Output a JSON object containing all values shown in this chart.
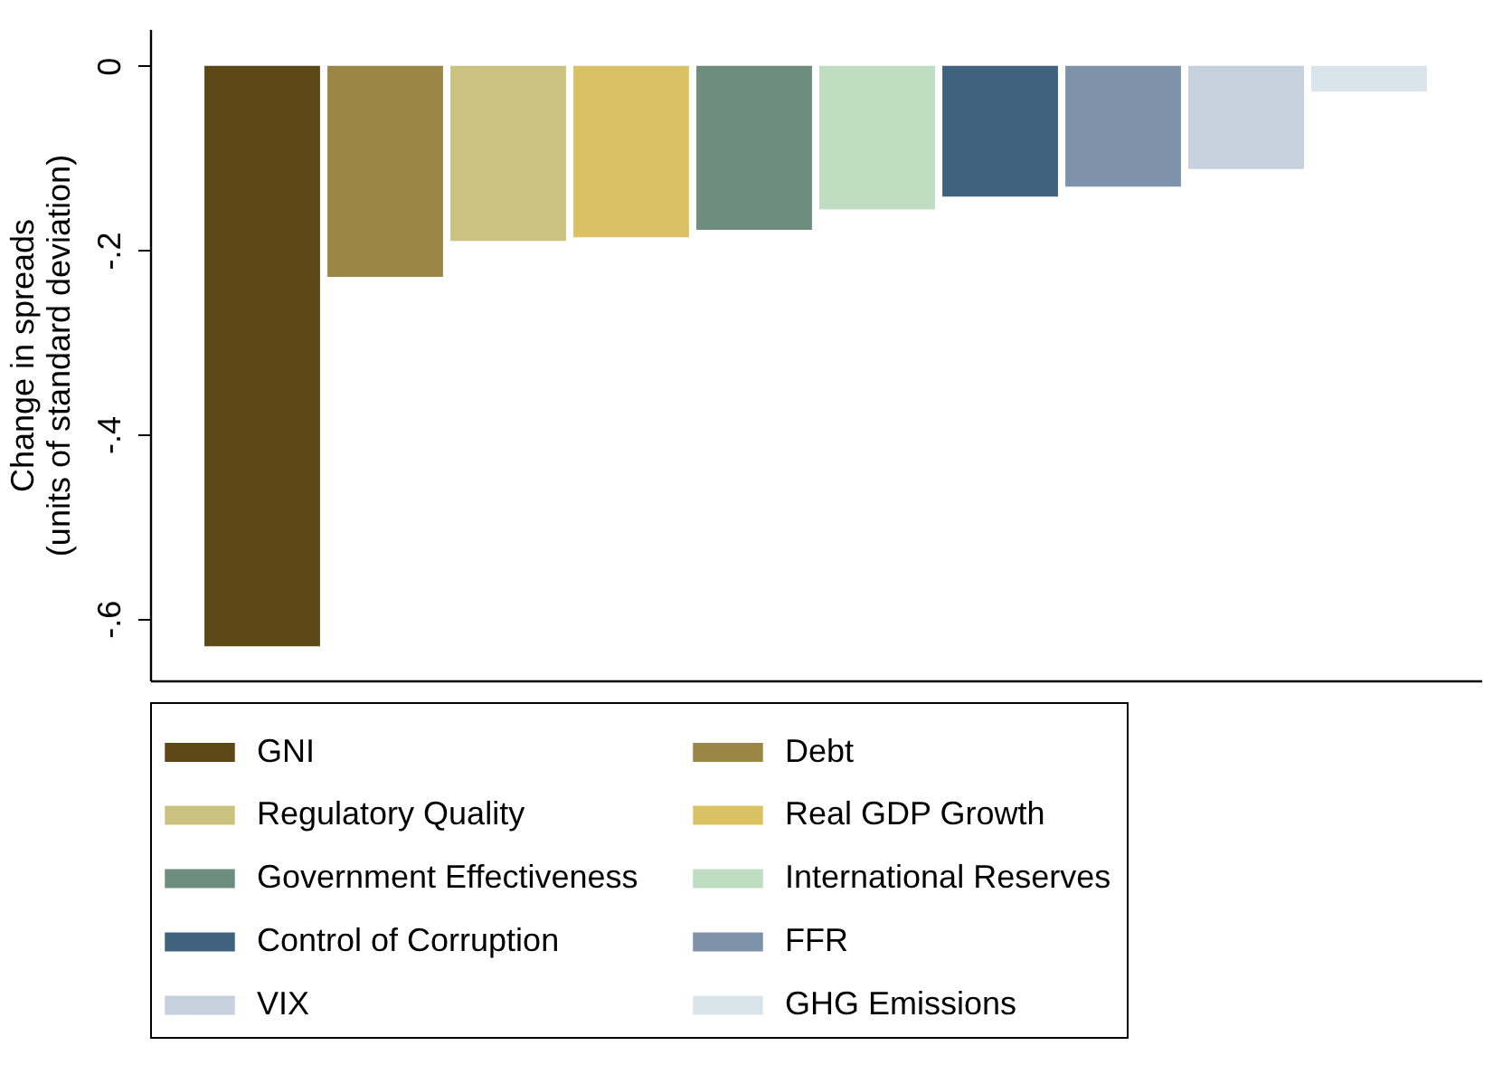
{
  "chart_data": {
    "type": "bar",
    "ylabel": "Change in spreads\n(units of standard deviation)",
    "categories": [
      null
    ],
    "series": [
      {
        "name": "GNI",
        "color": "#5c4716",
        "values": [
          -0.63
        ]
      },
      {
        "name": "Debt",
        "color": "#9b8645",
        "values": [
          -0.229
        ]
      },
      {
        "name": "Regulatory Quality",
        "color": "#cbc282",
        "values": [
          -0.19
        ]
      },
      {
        "name": "Real GDP Growth",
        "color": "#dac264",
        "values": [
          -0.186
        ]
      },
      {
        "name": "Government Effectiveness",
        "color": "#6d8d80",
        "values": [
          -0.178
        ]
      },
      {
        "name": "International Reserves",
        "color": "#bfddc0",
        "values": [
          -0.156
        ]
      },
      {
        "name": "Control of Corruption",
        "color": "#3f627d",
        "values": [
          -0.142
        ]
      },
      {
        "name": "FFR",
        "color": "#7e93aa",
        "values": [
          -0.131
        ]
      },
      {
        "name": "VIX",
        "color": "#c5d1dd",
        "values": [
          -0.112
        ]
      },
      {
        "name": "GHG Emissions",
        "color": "#d9e5eb",
        "values": [
          -0.028
        ]
      }
    ],
    "ylim": [
      -0.667,
      0.04
    ],
    "yticks": [
      {
        "value": 0,
        "label": "0"
      },
      {
        "value": -0.2,
        "label": "-.2"
      },
      {
        "value": -0.4,
        "label": "-.4"
      },
      {
        "value": -0.6,
        "label": "-.6"
      }
    ],
    "tick_labels": "y",
    "grid": false,
    "legend": "bottom"
  }
}
